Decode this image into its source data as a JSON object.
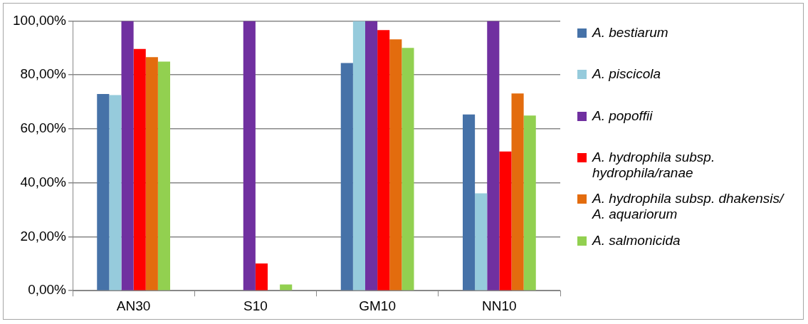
{
  "chart_data": {
    "type": "bar",
    "categories": [
      "AN30",
      "S10",
      "GM10",
      "NN10"
    ],
    "series": [
      {
        "name": "A. bestiarum",
        "color": "#4672a8",
        "values": [
          72.9,
          0,
          84.4,
          65.3
        ]
      },
      {
        "name": "A. piscicola",
        "color": "#96cbdc",
        "values": [
          72.5,
          0,
          100,
          36.1
        ]
      },
      {
        "name": "A. popoffii",
        "color": "#7030a0",
        "values": [
          100,
          100,
          100,
          100
        ]
      },
      {
        "name": "A. hydrophila subsp. hydrophila/ranae",
        "color": "#ff0000",
        "values": [
          89.6,
          10.1,
          96.6,
          51.6
        ]
      },
      {
        "name": "A. hydrophila subsp. dhakensis/ A. aquariorum",
        "color": "#e36c0e",
        "values": [
          86.6,
          0,
          93.2,
          73.1
        ]
      },
      {
        "name": "A. salmonicida",
        "color": "#92d050",
        "values": [
          84.9,
          2.3,
          90,
          64.9
        ]
      }
    ],
    "ylim": [
      0,
      100
    ],
    "yticks": [
      {
        "value": 0,
        "label": "0,00%"
      },
      {
        "value": 20,
        "label": "20,00%"
      },
      {
        "value": 40,
        "label": "40,00%"
      },
      {
        "value": 60,
        "label": "60,00%"
      },
      {
        "value": 80,
        "label": "80,00%"
      },
      {
        "value": 100,
        "label": "100,00%"
      }
    ],
    "grid": "y",
    "legend": "right"
  }
}
